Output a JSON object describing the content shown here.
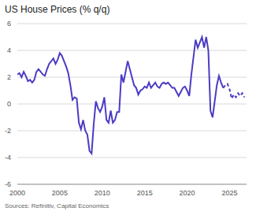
{
  "chart_data": {
    "type": "line",
    "title": "US House Prices (% q/q)",
    "subtitle": "Sources: Refinitiv, Capital Economics",
    "xlim": [
      2000,
      2027
    ],
    "xticks": [
      2000,
      2005,
      2010,
      2015,
      2020,
      2025
    ],
    "ylim": [
      -6,
      6
    ],
    "yticks": [
      -6,
      -4,
      -2,
      0,
      2,
      4,
      6
    ],
    "grid": true,
    "series": [
      {
        "color": "#4a3cc4",
        "line_style": "solid",
        "x": [
          2000,
          2000.25,
          2000.5,
          2000.75,
          2001,
          2001.25,
          2001.5,
          2001.75,
          2002,
          2002.25,
          2002.5,
          2002.75,
          2003,
          2003.25,
          2003.5,
          2003.75,
          2004,
          2004.25,
          2004.5,
          2004.75,
          2005,
          2005.25,
          2005.5,
          2005.75,
          2006,
          2006.25,
          2006.5,
          2006.75,
          2007,
          2007.25,
          2007.5,
          2007.75,
          2008,
          2008.25,
          2008.5,
          2008.75,
          2009,
          2009.25,
          2009.5,
          2009.75,
          2010,
          2010.25,
          2010.5,
          2010.75,
          2011,
          2011.25,
          2011.5,
          2011.75,
          2012,
          2012.25,
          2012.5,
          2012.75,
          2013,
          2013.25,
          2013.5,
          2013.75,
          2014,
          2014.25,
          2014.5,
          2014.75,
          2015,
          2015.25,
          2015.5,
          2015.75,
          2016,
          2016.25,
          2016.5,
          2016.75,
          2017,
          2017.25,
          2017.5,
          2017.75,
          2018,
          2018.25,
          2018.5,
          2018.75,
          2019,
          2019.25,
          2019.5,
          2019.75,
          2020,
          2020.25,
          2020.5,
          2020.75,
          2021,
          2021.25,
          2021.5,
          2021.75,
          2022,
          2022.25,
          2022.5,
          2022.75,
          2023,
          2023.25,
          2023.5,
          2023.75,
          2024,
          2024.25
        ],
        "values": [
          2.2,
          2.3,
          2.0,
          2.4,
          2.1,
          1.7,
          1.8,
          1.6,
          1.8,
          2.4,
          2.6,
          2.4,
          2.2,
          2.1,
          2.6,
          3.0,
          3.2,
          3.4,
          3.0,
          3.3,
          3.8,
          3.6,
          3.2,
          2.8,
          2.3,
          1.4,
          0.3,
          0.5,
          0.4,
          -1.4,
          -1.9,
          -1.2,
          -2.0,
          -2.3,
          -3.5,
          -3.7,
          -1.5,
          0.2,
          -0.3,
          -0.6,
          -0.2,
          0.5,
          -1.2,
          -1.4,
          -0.5,
          -1.4,
          -1.2,
          -0.6,
          -0.6,
          2.2,
          1.6,
          2.4,
          3.2,
          2.6,
          2.0,
          1.4,
          1.2,
          0.7,
          1.0,
          1.1,
          1.3,
          1.2,
          1.6,
          1.2,
          1.4,
          1.6,
          1.3,
          1.2,
          1.5,
          1.6,
          1.5,
          1.6,
          1.4,
          1.2,
          1.2,
          0.9,
          0.6,
          0.9,
          1.2,
          1.3,
          1.0,
          0.6,
          2.2,
          3.5,
          4.8,
          4.2,
          4.6,
          5.0,
          4.2,
          5.0,
          4.0,
          -0.5,
          -1.0,
          0.2,
          1.4,
          2.1,
          1.6,
          1.2
        ]
      },
      {
        "color": "#4a3cc4",
        "line_style": "dashed",
        "x": [
          2024.25,
          2024.5,
          2024.75,
          2025,
          2025.25,
          2025.5,
          2025.75,
          2026,
          2026.25,
          2026.5,
          2026.75
        ],
        "values": [
          1.2,
          1.4,
          1.5,
          1.1,
          0.4,
          0.7,
          0.5,
          0.8,
          0.6,
          0.8,
          0.5
        ]
      }
    ]
  }
}
